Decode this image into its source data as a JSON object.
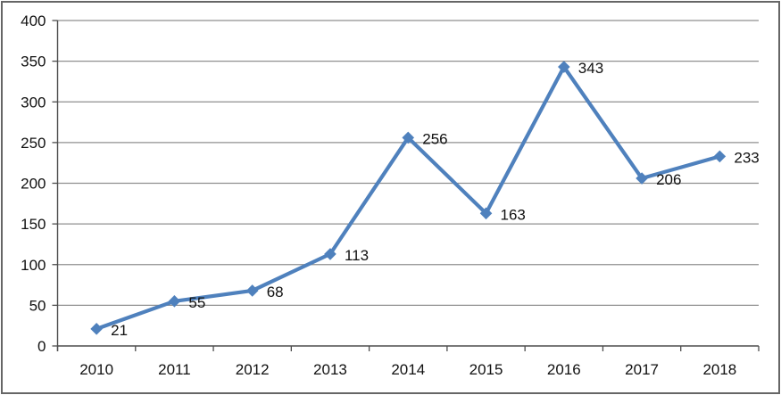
{
  "chart_data": {
    "type": "line",
    "title": "",
    "xlabel": "",
    "ylabel": "",
    "categories": [
      "2010",
      "2011",
      "2012",
      "2013",
      "2014",
      "2015",
      "2016",
      "2017",
      "2018"
    ],
    "series": [
      {
        "values": [
          21,
          55,
          68,
          113,
          256,
          163,
          343,
          206,
          233
        ]
      }
    ],
    "data_labels": [
      21,
      55,
      68,
      113,
      256,
      163,
      343,
      206,
      233
    ],
    "ylim": [
      0,
      400
    ],
    "yticks": [
      0,
      50,
      100,
      150,
      200,
      250,
      300,
      350,
      400
    ],
    "grid": true,
    "legend": "none",
    "marker": "diamond",
    "colors": {
      "series": "#4F81BD",
      "gridline": "#8f8f8f",
      "axis": "#4d4d4d",
      "label": "#111111",
      "frame_border": "#666666",
      "background": "#ffffff"
    }
  }
}
